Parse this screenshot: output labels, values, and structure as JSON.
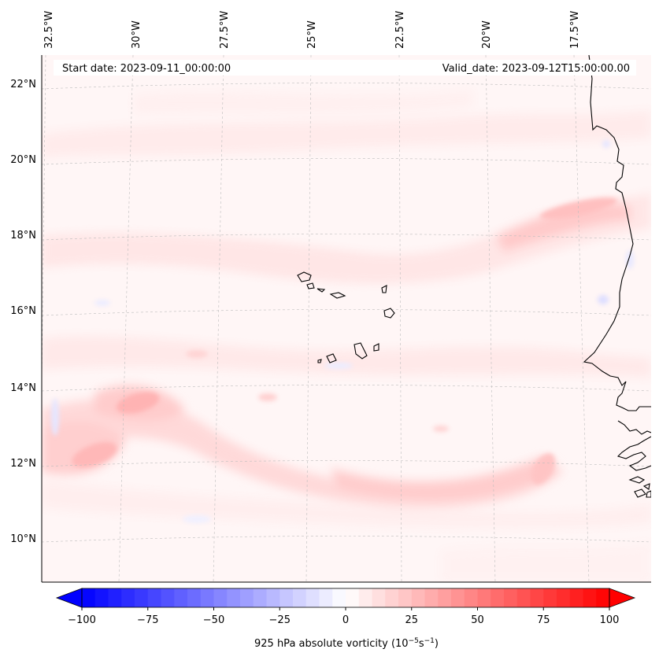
{
  "header": {
    "start_date": "Start date: 2023-09-11_00:00:00",
    "valid_date": "Valid_date: 2023-09-12T15:00:00.00"
  },
  "map": {
    "longitude_labels": [
      "32.5°W",
      "30°W",
      "27.5°W",
      "25°W",
      "22.5°W",
      "20°W",
      "17.5°W"
    ],
    "latitude_labels": [
      "22°N",
      "20°N",
      "18°N",
      "16°N",
      "14°N",
      "12°N",
      "10°N"
    ],
    "gridlines": "dashed light grey",
    "coastline_color": "#000000"
  },
  "colorbar": {
    "tick_labels": [
      "−100",
      "−75",
      "−50",
      "−25",
      "0",
      "25",
      "50",
      "75",
      "100"
    ],
    "label": "925 hPa absolute vorticity (10",
    "label_exp1": "−5",
    "label_mid": "s",
    "label_exp2": "−1",
    "label_end": ")",
    "colormap": "bwr",
    "low_color": "#0000ff",
    "mid_color": "#ffffff",
    "high_color": "#ff0000",
    "range": [
      -100,
      100
    ],
    "step": 5
  }
}
